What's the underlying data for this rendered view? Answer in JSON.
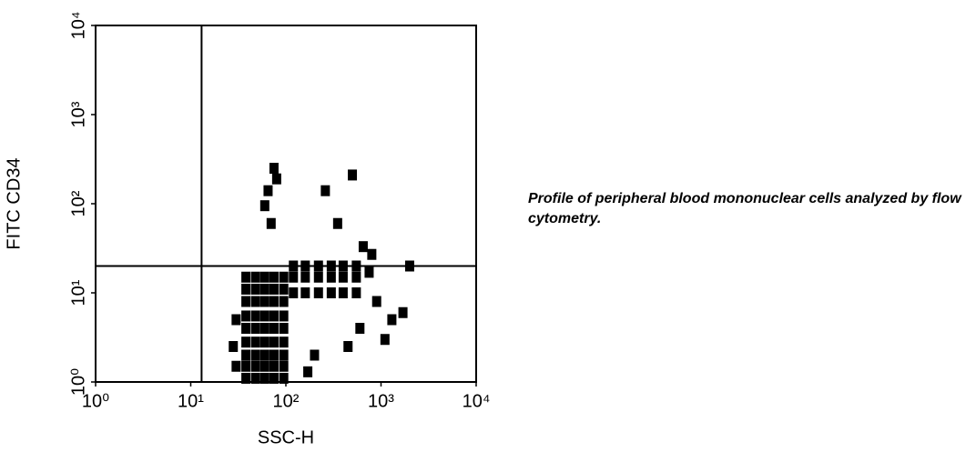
{
  "chart_data": {
    "type": "scatter",
    "xlabel": "SSC-H",
    "ylabel": "FITC CD34",
    "annotation": "Profile of peripheral blood mononuclear cells analyzed by flow cytometry.",
    "xscale": "log",
    "yscale": "log",
    "color": "#000000",
    "xlim": [
      1,
      10000
    ],
    "ylim": [
      1,
      10000
    ],
    "xticks": [
      {
        "value": 1,
        "label": "10⁰"
      },
      {
        "value": 10,
        "label": "10¹"
      },
      {
        "value": 100,
        "label": "10²"
      },
      {
        "value": 1000,
        "label": "10³"
      },
      {
        "value": 10000,
        "label": "10⁴"
      }
    ],
    "yticks": [
      {
        "value": 1,
        "label": "10⁰"
      },
      {
        "value": 10,
        "label": "10¹"
      },
      {
        "value": 100,
        "label": "10²"
      },
      {
        "value": 1000,
        "label": "10³"
      },
      {
        "value": 10000,
        "label": "10⁴"
      }
    ],
    "quadrant_x": 13,
    "quadrant_y": 20,
    "x": [
      38,
      38,
      38,
      38,
      38,
      38,
      38,
      38,
      38,
      48,
      48,
      48,
      48,
      48,
      48,
      48,
      48,
      48,
      60,
      60,
      60,
      60,
      60,
      60,
      60,
      60,
      60,
      75,
      75,
      75,
      75,
      75,
      75,
      75,
      75,
      75,
      95,
      95,
      95,
      95,
      95,
      95,
      95,
      95,
      95,
      120,
      120,
      120,
      160,
      160,
      160,
      220,
      220,
      220,
      300,
      300,
      300,
      400,
      400,
      400,
      550,
      550,
      550,
      750,
      900,
      1300,
      1700,
      1100,
      600,
      450,
      200,
      170,
      60,
      65,
      75,
      70,
      80,
      260,
      500,
      350,
      650,
      800,
      2000,
      30,
      28,
      30
    ],
    "y": [
      1.1,
      1.5,
      2,
      2.8,
      4,
      5.5,
      8,
      11,
      15,
      1.1,
      1.5,
      2,
      2.8,
      4,
      5.5,
      8,
      11,
      15,
      1.1,
      1.5,
      2,
      2.8,
      4,
      5.5,
      8,
      11,
      15,
      1.1,
      1.5,
      2,
      2.8,
      4,
      5.5,
      8,
      11,
      15,
      1.1,
      1.5,
      2,
      2.8,
      4,
      5.5,
      8,
      11,
      15,
      10,
      15,
      20,
      10,
      15,
      20,
      10,
      15,
      20,
      10,
      15,
      20,
      10,
      15,
      20,
      10,
      15,
      20,
      17,
      8,
      5,
      6,
      3,
      4,
      2.5,
      2,
      1.3,
      95,
      140,
      250,
      60,
      190,
      140,
      210,
      60,
      33,
      27,
      20,
      1.5,
      2.5,
      5
    ]
  }
}
